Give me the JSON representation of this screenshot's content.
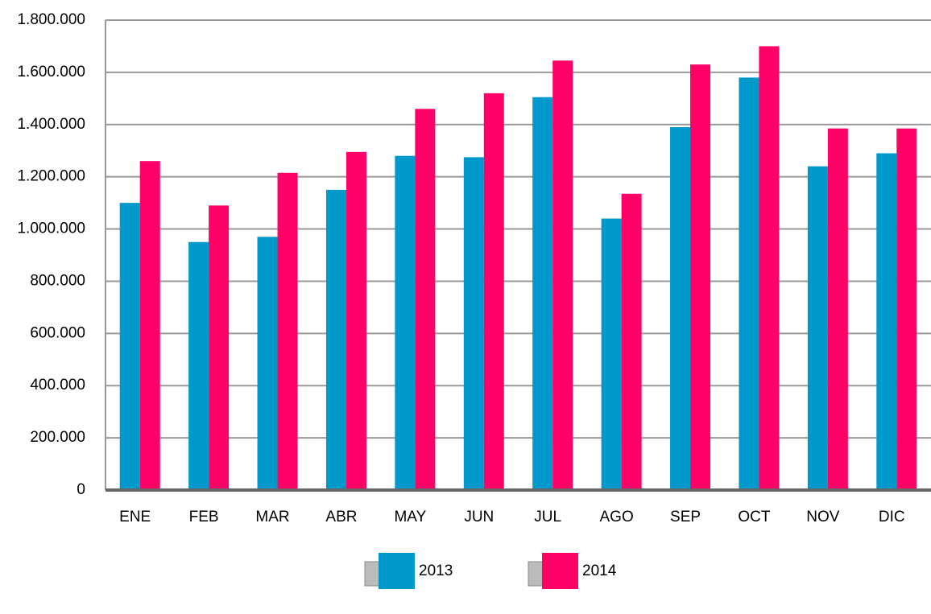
{
  "chart_data": {
    "type": "bar",
    "categories": [
      "ENE",
      "FEB",
      "MAR",
      "ABR",
      "MAY",
      "JUN",
      "JUL",
      "AGO",
      "SEP",
      "OCT",
      "NOV",
      "DIC"
    ],
    "series": [
      {
        "name": "2013",
        "color": "#0099cc",
        "values": [
          1100000,
          950000,
          970000,
          1150000,
          1280000,
          1275000,
          1505000,
          1040000,
          1390000,
          1580000,
          1240000,
          1290000
        ]
      },
      {
        "name": "2014",
        "color": "#ff0066",
        "values": [
          1260000,
          1090000,
          1215000,
          1295000,
          1460000,
          1520000,
          1645000,
          1135000,
          1630000,
          1700000,
          1385000,
          1385000
        ]
      }
    ],
    "ylim": [
      0,
      1800000
    ],
    "yticks": [
      0,
      {
        "value": 200000,
        "label": "200.000"
      },
      {
        "value": 400000,
        "label": "400.000"
      },
      {
        "value": 600000,
        "label": "600.000"
      },
      {
        "value": 800000,
        "label": "800.000"
      },
      {
        "value": 1000000,
        "label": "1.000.000"
      },
      {
        "value": 1200000,
        "label": "1.200.000"
      },
      {
        "value": 1400000,
        "label": "1.400.000"
      },
      {
        "value": 1600000,
        "label": "1.600.000"
      },
      {
        "value": 1800000,
        "label": "1.800.000"
      }
    ],
    "grid": true,
    "legend": "bottom"
  }
}
